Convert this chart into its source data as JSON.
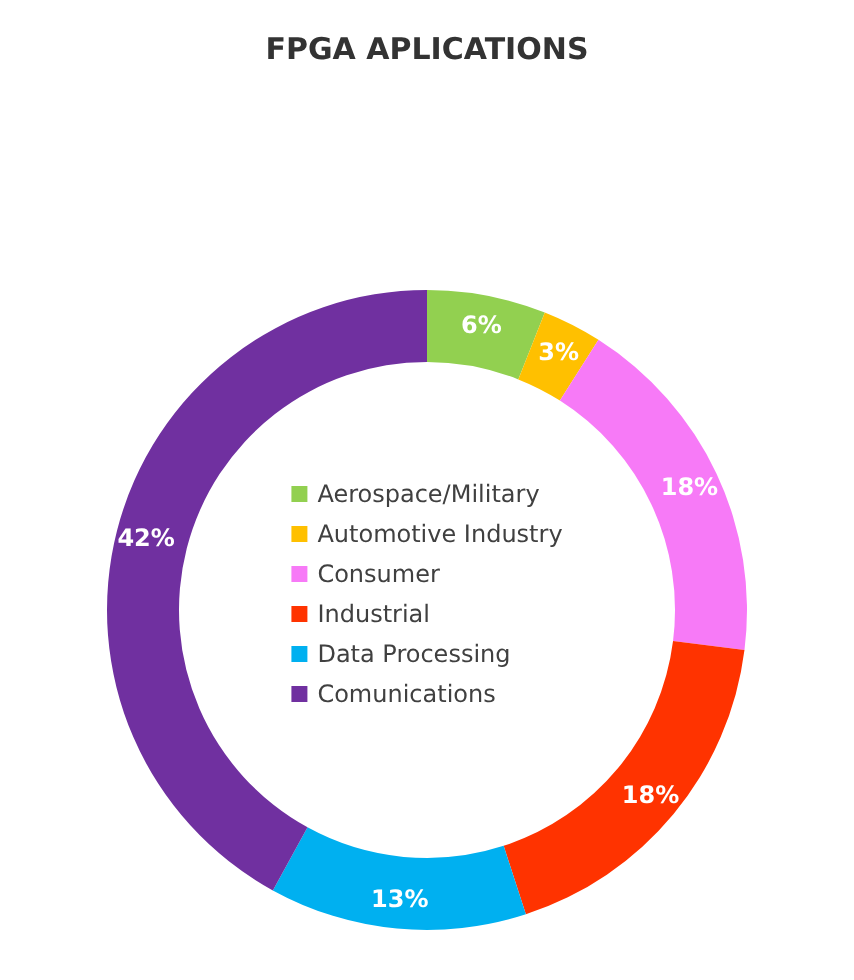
{
  "chart_data": {
    "type": "donut",
    "title": "FPGA APLICATIONS",
    "categories": [
      "Aerospace/Military",
      "Automotive Industry",
      "Consumer",
      "Industrial",
      "Data Processing",
      "Comunications"
    ],
    "values": [
      6,
      3,
      18,
      18,
      13,
      42
    ],
    "colors": [
      "#92d050",
      "#ffc000",
      "#f77af7",
      "#ff3300",
      "#00b0f0",
      "#7030a0"
    ],
    "value_labels": [
      "6%",
      "3%",
      "18%",
      "18%",
      "13%",
      "42%"
    ],
    "legend": "center"
  }
}
